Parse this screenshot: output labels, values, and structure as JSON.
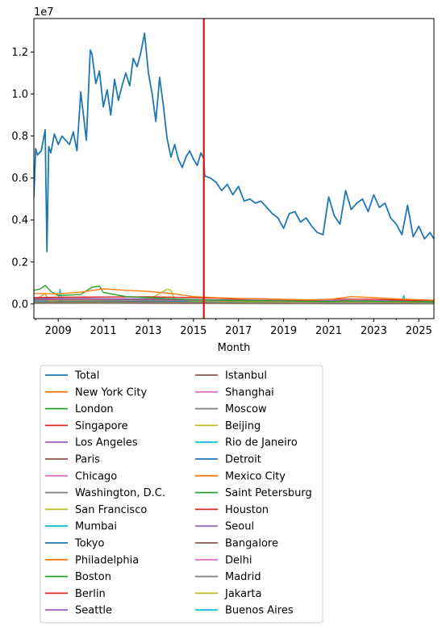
{
  "chart_data": {
    "type": "line",
    "xlabel": "Month",
    "ylabel": "",
    "y_offset_text": "1e7",
    "y_scale": 10000000,
    "x_tick_labels": [
      "2009",
      "2011",
      "2013",
      "2015",
      "2017",
      "2019",
      "2021",
      "2023",
      "2025"
    ],
    "y_tick_labels": [
      "0.0",
      "0.2",
      "0.4",
      "0.6",
      "0.8",
      "1.0",
      "1.2"
    ],
    "xlim": [
      2007.92,
      2025.67
    ],
    "ylim": [
      -700000,
      13600000
    ],
    "vline": {
      "x": 2015.46,
      "color": "#e3120b"
    },
    "grid": false,
    "legend_position": "below plot, two columns",
    "palette": [
      "#1f77b4",
      "#ff7f0e",
      "#2ca02c",
      "#d62728",
      "#9467bd",
      "#8c564b",
      "#e377c2",
      "#7f7f7f",
      "#bcbd22",
      "#17becf"
    ],
    "series": [
      {
        "name": "Total",
        "x": [
          2007.92,
          2008.0,
          2008.08,
          2008.25,
          2008.42,
          2008.5,
          2008.58,
          2008.67,
          2008.83,
          2009.0,
          2009.17,
          2009.33,
          2009.5,
          2009.67,
          2009.83,
          2010.0,
          2010.25,
          2010.42,
          2010.5,
          2010.67,
          2010.83,
          2011.0,
          2011.17,
          2011.33,
          2011.5,
          2011.67,
          2011.83,
          2012.0,
          2012.17,
          2012.33,
          2012.5,
          2012.67,
          2012.83,
          2013.0,
          2013.17,
          2013.33,
          2013.5,
          2013.67,
          2013.83,
          2014.0,
          2014.17,
          2014.33,
          2014.5,
          2014.67,
          2014.83,
          2015.0,
          2015.17,
          2015.33,
          2015.46,
          2015.5,
          2015.75,
          2016.0,
          2016.25,
          2016.5,
          2016.75,
          2017.0,
          2017.25,
          2017.5,
          2017.75,
          2018.0,
          2018.25,
          2018.5,
          2018.75,
          2019.0,
          2019.25,
          2019.5,
          2019.75,
          2020.0,
          2020.25,
          2020.5,
          2020.75,
          2021.0,
          2021.25,
          2021.5,
          2021.75,
          2022.0,
          2022.25,
          2022.5,
          2022.75,
          2023.0,
          2023.25,
          2023.5,
          2023.75,
          2024.0,
          2024.25,
          2024.5,
          2024.75,
          2025.0,
          2025.25,
          2025.5,
          2025.67
        ],
        "y": [
          5100000,
          7400000,
          7100000,
          7300000,
          8300000,
          2500000,
          7500000,
          7200000,
          8100000,
          7600000,
          8000000,
          7800000,
          7600000,
          8200000,
          7300000,
          10100000,
          7800000,
          12100000,
          11900000,
          10500000,
          11100000,
          9400000,
          10200000,
          9000000,
          10700000,
          9700000,
          10400000,
          11000000,
          10400000,
          11700000,
          11300000,
          12000000,
          12900000,
          11000000,
          10000000,
          8700000,
          10800000,
          9400000,
          7900000,
          7000000,
          7600000,
          6900000,
          6500000,
          7000000,
          7300000,
          6900000,
          6600000,
          7200000,
          6900000,
          6100000,
          6000000,
          5800000,
          5400000,
          5700000,
          5200000,
          5600000,
          4900000,
          5000000,
          4800000,
          4900000,
          4600000,
          4300000,
          4100000,
          3600000,
          4300000,
          4400000,
          3900000,
          4100000,
          3700000,
          3400000,
          3300000,
          5100000,
          4200000,
          3800000,
          5400000,
          4500000,
          4800000,
          5000000,
          4400000,
          5200000,
          4600000,
          4800000,
          4100000,
          3800000,
          3300000,
          4700000,
          3200000,
          3700000,
          3100000,
          3400000,
          3100000
        ]
      },
      {
        "name": "New York City",
        "x": [
          2007.92,
          2009.0,
          2010.0,
          2011.0,
          2012.0,
          2013.0,
          2014.0,
          2015.0,
          2016.0,
          2017.0,
          2018.0,
          2019.0,
          2020.0,
          2021.0,
          2022.0,
          2023.0,
          2024.0,
          2025.0,
          2025.67
        ],
        "y": [
          500000,
          480000,
          560000,
          720000,
          650000,
          600000,
          500000,
          350000,
          300000,
          260000,
          240000,
          220000,
          200000,
          210000,
          350000,
          300000,
          240000,
          200000,
          180000
        ]
      },
      {
        "name": "London",
        "x": [
          2007.92,
          2008.17,
          2008.42,
          2008.67,
          2009.0,
          2010.0,
          2010.5,
          2010.83,
          2011.0,
          2012.0,
          2013.0,
          2014.0,
          2015.0,
          2016.0,
          2017.0,
          2018.0,
          2019.0,
          2020.0,
          2021.0,
          2022.0,
          2023.0,
          2024.0,
          2025.0,
          2025.67
        ],
        "y": [
          650000,
          700000,
          880000,
          600000,
          400000,
          450000,
          800000,
          850000,
          550000,
          350000,
          300000,
          250000,
          200000,
          180000,
          160000,
          150000,
          140000,
          130000,
          120000,
          140000,
          130000,
          120000,
          110000,
          100000
        ]
      },
      {
        "name": "Singapore",
        "x": [
          2007.92,
          2009.0,
          2011.0,
          2013.0,
          2015.0,
          2016.0,
          2017.0,
          2018.0,
          2019.0,
          2020.0,
          2021.0,
          2022.0,
          2023.0,
          2024.0,
          2025.0,
          2025.67
        ],
        "y": [
          300000,
          320000,
          330000,
          340000,
          300000,
          280000,
          230000,
          250000,
          210000,
          180000,
          220000,
          230000,
          220000,
          190000,
          170000,
          160000
        ]
      },
      {
        "name": "Los Angeles",
        "x": [
          2007.92,
          2010.0,
          2013.0,
          2016.0,
          2019.0,
          2022.0,
          2025.67
        ],
        "y": [
          250000,
          260000,
          240000,
          200000,
          170000,
          160000,
          140000
        ]
      },
      {
        "name": "Paris",
        "x": [
          2007.92,
          2010.0,
          2013.0,
          2016.0,
          2019.0,
          2022.0,
          2025.67
        ],
        "y": [
          220000,
          230000,
          210000,
          180000,
          160000,
          150000,
          130000
        ]
      },
      {
        "name": "Chicago",
        "x": [
          2007.92,
          2010.0,
          2013.0,
          2016.0,
          2019.0,
          2022.0,
          2025.67
        ],
        "y": [
          200000,
          210000,
          200000,
          170000,
          150000,
          140000,
          120000
        ]
      },
      {
        "name": "Washington, D.C.",
        "x": [
          2007.92,
          2010.0,
          2013.0,
          2016.0,
          2019.0,
          2022.0,
          2025.67
        ],
        "y": [
          180000,
          190000,
          180000,
          160000,
          140000,
          130000,
          110000
        ]
      },
      {
        "name": "San Francisco",
        "x": [
          2007.92,
          2008.42,
          2008.58,
          2009.0,
          2011.0,
          2013.0,
          2013.83,
          2014.0,
          2014.17,
          2015.0,
          2017.0,
          2020.0,
          2023.0,
          2025.67
        ],
        "y": [
          160000,
          500000,
          150000,
          170000,
          180000,
          190000,
          700000,
          650000,
          200000,
          150000,
          130000,
          110000,
          100000,
          90000
        ]
      },
      {
        "name": "Mumbai",
        "x": [
          2007.92,
          2009.0,
          2009.08,
          2009.17,
          2011.0,
          2013.0,
          2015.0,
          2017.0,
          2020.0,
          2023.0,
          2024.25,
          2024.33,
          2024.42,
          2025.67
        ],
        "y": [
          150000,
          150000,
          700000,
          150000,
          160000,
          170000,
          140000,
          120000,
          110000,
          100000,
          100000,
          400000,
          100000,
          80000
        ]
      },
      {
        "name": "Tokyo",
        "x": [
          2007.92,
          2010.0,
          2013.0,
          2016.0,
          2019.0,
          2022.0,
          2025.67
        ],
        "y": [
          140000,
          150000,
          140000,
          120000,
          110000,
          100000,
          90000
        ]
      },
      {
        "name": "Philadelphia",
        "x": [
          2007.92,
          2010.0,
          2013.0,
          2016.0,
          2019.0,
          2022.0,
          2025.67
        ],
        "y": [
          130000,
          140000,
          130000,
          110000,
          100000,
          95000,
          85000
        ]
      },
      {
        "name": "Boston",
        "x": [
          2007.92,
          2010.0,
          2013.0,
          2016.0,
          2019.0,
          2022.0,
          2025.67
        ],
        "y": [
          120000,
          130000,
          120000,
          100000,
          95000,
          90000,
          80000
        ]
      },
      {
        "name": "Berlin",
        "x": [
          2007.92,
          2010.0,
          2013.0,
          2016.0,
          2019.0,
          2022.0,
          2025.67
        ],
        "y": [
          110000,
          120000,
          110000,
          95000,
          90000,
          85000,
          75000
        ]
      },
      {
        "name": "Seattle",
        "x": [
          2007.92,
          2010.0,
          2013.0,
          2016.0,
          2019.0,
          2022.0,
          2025.67
        ],
        "y": [
          100000,
          110000,
          100000,
          90000,
          85000,
          80000,
          70000
        ]
      },
      {
        "name": "Istanbul",
        "x": [
          2007.92,
          2010.0,
          2013.0,
          2016.0,
          2019.0,
          2022.0,
          2025.67
        ],
        "y": [
          95000,
          100000,
          95000,
          85000,
          80000,
          75000,
          65000
        ]
      },
      {
        "name": "Shanghai",
        "x": [
          2007.92,
          2010.0,
          2013.0,
          2016.0,
          2019.0,
          2022.0,
          2025.67
        ],
        "y": [
          90000,
          95000,
          90000,
          80000,
          75000,
          70000,
          60000
        ]
      },
      {
        "name": "Moscow",
        "x": [
          2007.92,
          2010.0,
          2013.0,
          2016.0,
          2019.0,
          2022.0,
          2025.67
        ],
        "y": [
          85000,
          90000,
          85000,
          75000,
          70000,
          65000,
          55000
        ]
      },
      {
        "name": "Beijing",
        "x": [
          2007.92,
          2010.0,
          2013.0,
          2016.0,
          2019.0,
          2022.0,
          2025.67
        ],
        "y": [
          80000,
          85000,
          80000,
          70000,
          65000,
          60000,
          50000
        ]
      },
      {
        "name": "Rio de Janeiro",
        "x": [
          2007.92,
          2010.0,
          2013.0,
          2016.0,
          2019.0,
          2022.0,
          2025.67
        ],
        "y": [
          75000,
          80000,
          75000,
          65000,
          60000,
          55000,
          45000
        ]
      },
      {
        "name": "Detroit",
        "x": [
          2007.92,
          2010.0,
          2013.0,
          2016.0,
          2019.0,
          2022.0,
          2025.67
        ],
        "y": [
          70000,
          75000,
          70000,
          60000,
          55000,
          50000,
          40000
        ]
      },
      {
        "name": "Mexico City",
        "x": [
          2007.92,
          2010.0,
          2013.0,
          2016.0,
          2019.0,
          2022.0,
          2025.67
        ],
        "y": [
          65000,
          70000,
          65000,
          55000,
          50000,
          45000,
          40000
        ]
      },
      {
        "name": "Saint Petersburg",
        "x": [
          2007.92,
          2010.0,
          2013.0,
          2016.0,
          2019.0,
          2022.0,
          2025.67
        ],
        "y": [
          60000,
          65000,
          60000,
          50000,
          45000,
          40000,
          35000
        ]
      },
      {
        "name": "Houston",
        "x": [
          2007.92,
          2010.0,
          2013.0,
          2016.0,
          2019.0,
          2022.0,
          2025.67
        ],
        "y": [
          55000,
          60000,
          55000,
          45000,
          40000,
          35000,
          30000
        ]
      },
      {
        "name": "Seoul",
        "x": [
          2007.92,
          2010.0,
          2013.0,
          2016.0,
          2019.0,
          2022.0,
          2025.67
        ],
        "y": [
          50000,
          55000,
          50000,
          40000,
          35000,
          30000,
          25000
        ]
      },
      {
        "name": "Bangalore",
        "x": [
          2007.92,
          2010.0,
          2013.0,
          2016.0,
          2019.0,
          2022.0,
          2025.67
        ],
        "y": [
          45000,
          50000,
          45000,
          35000,
          30000,
          25000,
          20000
        ]
      },
      {
        "name": "Delhi",
        "x": [
          2007.92,
          2010.0,
          2013.0,
          2016.0,
          2019.0,
          2022.0,
          2025.67
        ],
        "y": [
          40000,
          45000,
          40000,
          30000,
          25000,
          20000,
          15000
        ]
      },
      {
        "name": "Madrid",
        "x": [
          2007.92,
          2010.0,
          2013.0,
          2016.0,
          2019.0,
          2022.0,
          2025.67
        ],
        "y": [
          35000,
          40000,
          35000,
          25000,
          20000,
          15000,
          10000
        ]
      },
      {
        "name": "Jakarta",
        "x": [
          2007.92,
          2010.0,
          2013.0,
          2016.0,
          2019.0,
          2022.0,
          2025.67
        ],
        "y": [
          30000,
          35000,
          30000,
          20000,
          15000,
          10000,
          8000
        ]
      },
      {
        "name": "Buenos Aires",
        "x": [
          2007.92,
          2010.0,
          2013.0,
          2016.0,
          2019.0,
          2022.0,
          2025.67
        ],
        "y": [
          25000,
          30000,
          25000,
          15000,
          10000,
          8000,
          5000
        ]
      }
    ]
  }
}
